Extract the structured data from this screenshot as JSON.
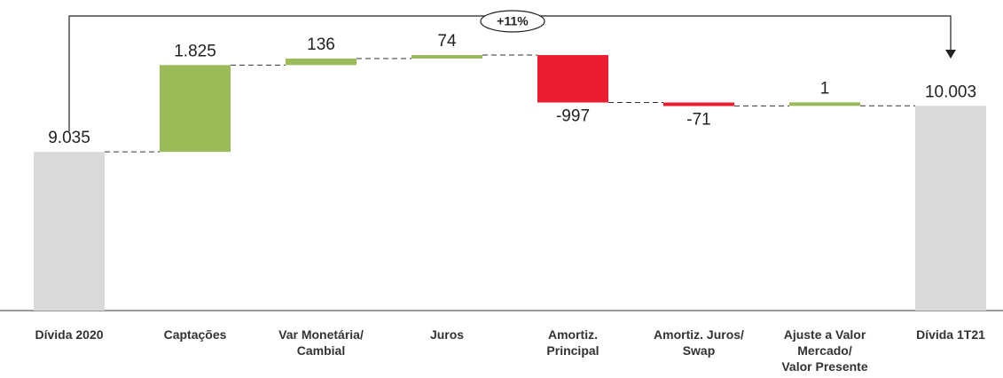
{
  "chart_data": {
    "type": "waterfall",
    "annotation": "+11%",
    "categories": [
      [
        "Dívida 2020"
      ],
      [
        "Captações"
      ],
      [
        "Var Monetária/",
        "Cambial"
      ],
      [
        "Juros"
      ],
      [
        "Amortiz.",
        "Principal"
      ],
      [
        "Amortiz. Juros/",
        "Swap"
      ],
      [
        "Ajuste a Valor",
        "Mercado/",
        "Valor Presente"
      ],
      [
        "Dívida 1T21"
      ]
    ],
    "values": [
      9035,
      1825,
      136,
      74,
      -997,
      -71,
      1,
      10003
    ],
    "value_labels": [
      "9.035",
      "1.825",
      "136",
      "74",
      "-997",
      "-71",
      "1",
      "10.003"
    ],
    "colors": {
      "total": "#d9d9d9",
      "increase": "#9bbb59",
      "decrease": "#ed1c2e"
    },
    "ylim": [
      5700,
      11500
    ]
  }
}
